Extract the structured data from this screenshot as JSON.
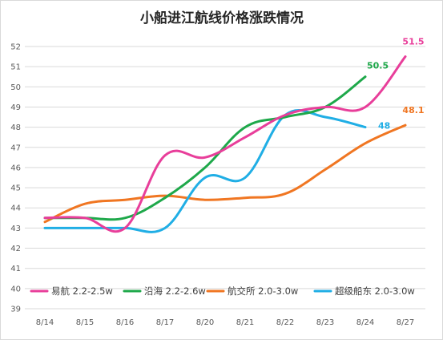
{
  "chart_data": {
    "type": "line",
    "title": "小船进江航线价格涨跌情况",
    "xlabel": "",
    "ylabel": "",
    "categories": [
      "8/14",
      "8/15",
      "8/16",
      "8/17",
      "8/20",
      "8/21",
      "8/22",
      "8/23",
      "8/24",
      "8/27"
    ],
    "ylim": [
      39,
      52
    ],
    "yticks": [
      39,
      40,
      41,
      42,
      43,
      44,
      45,
      46,
      47,
      48,
      49,
      50,
      51,
      52
    ],
    "grid": true,
    "legend_position": "bottom",
    "series": [
      {
        "name": "易航 2.2-2.5w",
        "color": "#e83e9a",
        "values": [
          43.5,
          43.5,
          43.0,
          46.6,
          46.5,
          47.5,
          48.6,
          49.0,
          49.0,
          51.5
        ],
        "end_label": "51.5"
      },
      {
        "name": "沿海 2.2-2.6w",
        "color": "#1ea84a",
        "values": [
          43.5,
          43.5,
          43.5,
          44.5,
          46.0,
          48.0,
          48.5,
          49.0,
          50.5,
          null
        ],
        "end_label": "50.5"
      },
      {
        "name": "航交所 2.0-3.0w",
        "color": "#f07622",
        "values": [
          43.3,
          44.2,
          44.4,
          44.6,
          44.4,
          44.5,
          44.7,
          45.9,
          47.2,
          48.1
        ],
        "end_label": "48.1"
      },
      {
        "name": "超级船东 2.0-3.0w",
        "color": "#20aee5",
        "values": [
          43.0,
          43.0,
          43.0,
          43.0,
          45.5,
          45.5,
          48.6,
          48.5,
          48.0,
          null
        ],
        "end_label": "48"
      }
    ]
  }
}
